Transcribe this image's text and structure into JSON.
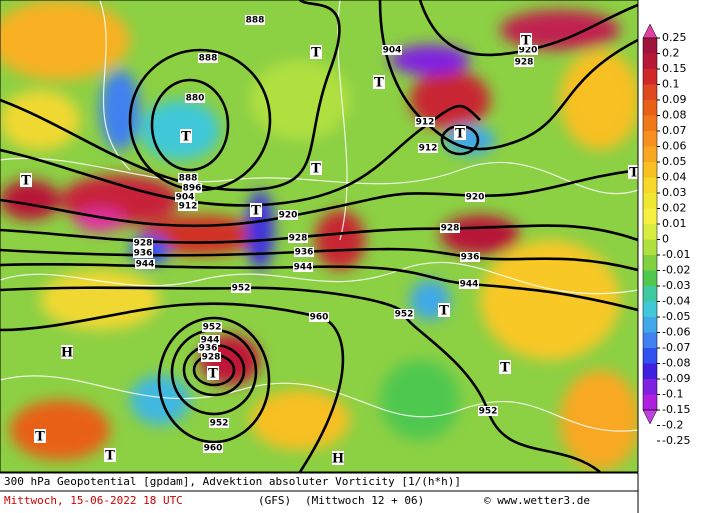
{
  "map": {
    "contour_labels": [
      888,
      888,
      880,
      888,
      896,
      904,
      912,
      904,
      920,
      928,
      912,
      912,
      920,
      928,
      936,
      944,
      920,
      928,
      936,
      944,
      928,
      936,
      944,
      952,
      960,
      952,
      952,
      944,
      936,
      928,
      952,
      960,
      952
    ],
    "markers": [
      "T",
      "T",
      "T",
      "T",
      "T",
      "T",
      "T",
      "T",
      "T",
      "T",
      "T",
      "T",
      "T",
      "T",
      "H",
      "H"
    ]
  },
  "legend": {
    "ticks": [
      0.25,
      0.2,
      0.15,
      0.1,
      0.09,
      0.08,
      0.07,
      0.06,
      0.05,
      0.04,
      0.03,
      0.02,
      0.01,
      0,
      -0.01,
      -0.02,
      -0.03,
      -0.04,
      -0.05,
      -0.06,
      -0.07,
      -0.08,
      -0.09,
      -0.1,
      -0.15,
      -0.2,
      -0.25
    ],
    "colors": [
      "#a0143c",
      "#b81838",
      "#d02828",
      "#e04820",
      "#e86018",
      "#f07818",
      "#f89020",
      "#f8a820",
      "#f8c020",
      "#f8d828",
      "#f0e830",
      "#f8f040",
      "#d8ec40",
      "#b0e040",
      "#80d040",
      "#50c850",
      "#40c8a0",
      "#40c8d8",
      "#40a8e8",
      "#4080f0",
      "#3050f0",
      "#4020e0",
      "#8020e0",
      "#b020e0"
    ],
    "top_color": "#e040a0",
    "bottom_color": "#c040e0"
  },
  "footer": {
    "title": "300 hPa Geopotential [gpdam], Advektion absoluter Vorticity [1/(h*h)]",
    "date": "Mittwoch, 15-06-2022  18 UTC",
    "model": "(GFS)",
    "run": "(Mittwoch 12 + 06)",
    "source": "© www.wetter3.de"
  }
}
